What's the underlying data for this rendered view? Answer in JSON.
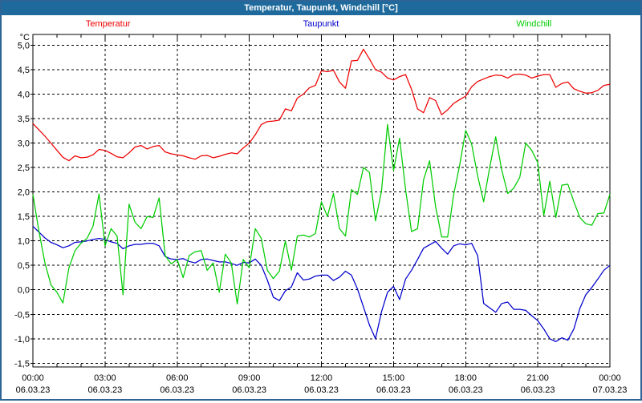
{
  "window": {
    "title": "Temperatur, Taupunkt, Windchill [°C]"
  },
  "legend": {
    "items": [
      {
        "label": "Temperatur",
        "color": "#ee0000"
      },
      {
        "label": "Taupunkt",
        "color": "#0000cc"
      },
      {
        "label": "Windchill",
        "color": "#00cc00"
      }
    ]
  },
  "axes": {
    "unit_label": "°C",
    "y_tick_labels": [
      "5,0",
      "4,5",
      "4,0",
      "3,5",
      "3,0",
      "2,5",
      "2,0",
      "1,5",
      "1,0",
      "0,5",
      "0,0",
      "-0,5",
      "-1,0",
      "-1,5"
    ],
    "y_tick_values": [
      5.0,
      4.5,
      4.0,
      3.5,
      3.0,
      2.5,
      2.0,
      1.5,
      1.0,
      0.5,
      0.0,
      -0.5,
      -1.0,
      -1.5
    ],
    "x_ticks": [
      {
        "time": "00:00",
        "date": "06.03.23",
        "hour": 0
      },
      {
        "time": "03:00",
        "date": "06.03.23",
        "hour": 3
      },
      {
        "time": "06:00",
        "date": "06.03.23",
        "hour": 6
      },
      {
        "time": "09:00",
        "date": "06.03.23",
        "hour": 9
      },
      {
        "time": "12:00",
        "date": "06.03.23",
        "hour": 12
      },
      {
        "time": "15:00",
        "date": "06.03.23",
        "hour": 15
      },
      {
        "time": "18:00",
        "date": "06.03.23",
        "hour": 18
      },
      {
        "time": "21:00",
        "date": "06.03.23",
        "hour": 21
      },
      {
        "time": "00:00",
        "date": "07.03.23",
        "hour": 24
      }
    ]
  },
  "chart_data": {
    "type": "line",
    "title": "Temperatur, Taupunkt, Windchill [°C]",
    "x_start_label": "06.03.23 00:00",
    "x_end_label": "07.03.23 00:00",
    "x_start": 0,
    "x_end": 24,
    "x_interval": 0.25,
    "x_gridline_step_hours": 3,
    "x_minor_tick_hours": 1,
    "ylim": [
      -1.5,
      5.0
    ],
    "y_gridline_step": 0.5,
    "grid": true,
    "legend_position": "top",
    "series": [
      {
        "name": "Temperatur",
        "color": "#ee0000",
        "values": [
          3.4,
          3.27,
          3.14,
          3.0,
          2.85,
          2.71,
          2.64,
          2.74,
          2.7,
          2.71,
          2.76,
          2.87,
          2.85,
          2.79,
          2.72,
          2.7,
          2.8,
          2.92,
          2.95,
          2.88,
          2.93,
          2.95,
          2.82,
          2.78,
          2.76,
          2.74,
          2.7,
          2.67,
          2.74,
          2.75,
          2.7,
          2.73,
          2.77,
          2.8,
          2.78,
          2.9,
          3.0,
          3.17,
          3.38,
          3.44,
          3.45,
          3.47,
          3.7,
          3.66,
          3.92,
          4.0,
          4.13,
          4.18,
          4.48,
          4.46,
          4.49,
          4.25,
          4.12,
          4.68,
          4.69,
          4.92,
          4.72,
          4.5,
          4.45,
          4.33,
          4.29,
          4.36,
          4.4,
          4.1,
          3.7,
          3.62,
          3.93,
          3.87,
          3.58,
          3.68,
          3.81,
          3.89,
          3.96,
          4.15,
          4.26,
          4.31,
          4.36,
          4.39,
          4.38,
          4.33,
          4.4,
          4.41,
          4.39,
          4.33,
          4.37,
          4.4,
          4.4,
          4.14,
          4.22,
          4.25,
          4.11,
          4.06,
          4.02,
          4.03,
          4.08,
          4.18,
          4.2
        ]
      },
      {
        "name": "Taupunkt",
        "color": "#0000cc",
        "values": [
          1.3,
          1.18,
          1.06,
          0.97,
          0.92,
          0.86,
          0.9,
          0.97,
          0.98,
          1.0,
          1.03,
          1.05,
          1.03,
          0.98,
          0.95,
          0.84,
          0.9,
          0.93,
          0.93,
          0.95,
          0.95,
          0.9,
          0.68,
          0.63,
          0.62,
          0.64,
          0.58,
          0.55,
          0.62,
          0.63,
          0.6,
          0.57,
          0.57,
          0.54,
          0.5,
          0.56,
          0.55,
          0.63,
          0.5,
          0.2,
          -0.15,
          -0.22,
          -0.02,
          0.06,
          0.35,
          0.2,
          0.22,
          0.28,
          0.3,
          0.3,
          0.19,
          0.26,
          0.38,
          0.3,
          0.02,
          -0.35,
          -0.72,
          -1.0,
          -0.45,
          -0.05,
          0.07,
          -0.2,
          0.22,
          0.4,
          0.62,
          0.85,
          0.92,
          0.99,
          0.85,
          0.73,
          0.9,
          0.94,
          0.92,
          0.95,
          0.7,
          -0.28,
          -0.37,
          -0.46,
          -0.28,
          -0.25,
          -0.4,
          -0.4,
          -0.42,
          -0.53,
          -0.63,
          -0.8,
          -1.0,
          -1.06,
          -0.98,
          -1.03,
          -0.8,
          -0.38,
          -0.1,
          0.05,
          0.22,
          0.4,
          0.5
        ]
      },
      {
        "name": "Windchill",
        "color": "#00cc00",
        "values": [
          1.95,
          1.2,
          0.55,
          0.1,
          -0.05,
          -0.27,
          0.45,
          0.8,
          0.95,
          1.05,
          1.3,
          1.96,
          0.9,
          1.25,
          1.1,
          -0.1,
          1.75,
          1.38,
          1.25,
          1.5,
          1.48,
          1.88,
          0.7,
          0.53,
          0.62,
          0.25,
          0.7,
          0.78,
          0.8,
          0.4,
          0.55,
          -0.05,
          0.73,
          0.55,
          -0.29,
          0.62,
          0.45,
          1.25,
          1.05,
          0.4,
          0.23,
          0.38,
          1.0,
          0.4,
          1.1,
          1.12,
          1.08,
          1.15,
          1.8,
          1.5,
          1.97,
          1.25,
          1.1,
          2.05,
          1.95,
          2.5,
          2.4,
          1.41,
          2.02,
          3.38,
          2.44,
          3.1,
          2.05,
          1.19,
          1.25,
          2.25,
          2.64,
          1.7,
          1.08,
          1.08,
          1.95,
          2.55,
          3.26,
          2.98,
          2.33,
          1.8,
          2.5,
          3.13,
          2.45,
          1.97,
          2.08,
          2.3,
          3.0,
          2.85,
          2.6,
          1.52,
          2.22,
          1.48,
          2.14,
          2.16,
          1.8,
          1.48,
          1.35,
          1.32,
          1.56,
          1.57,
          1.95
        ]
      }
    ]
  },
  "colors": {
    "header_bg": "#1e6a9c",
    "header_text": "#ffffff",
    "border": "#2e6496",
    "plot_background": "#ffffff",
    "grid": "#000000",
    "axis_text": "#000000"
  }
}
